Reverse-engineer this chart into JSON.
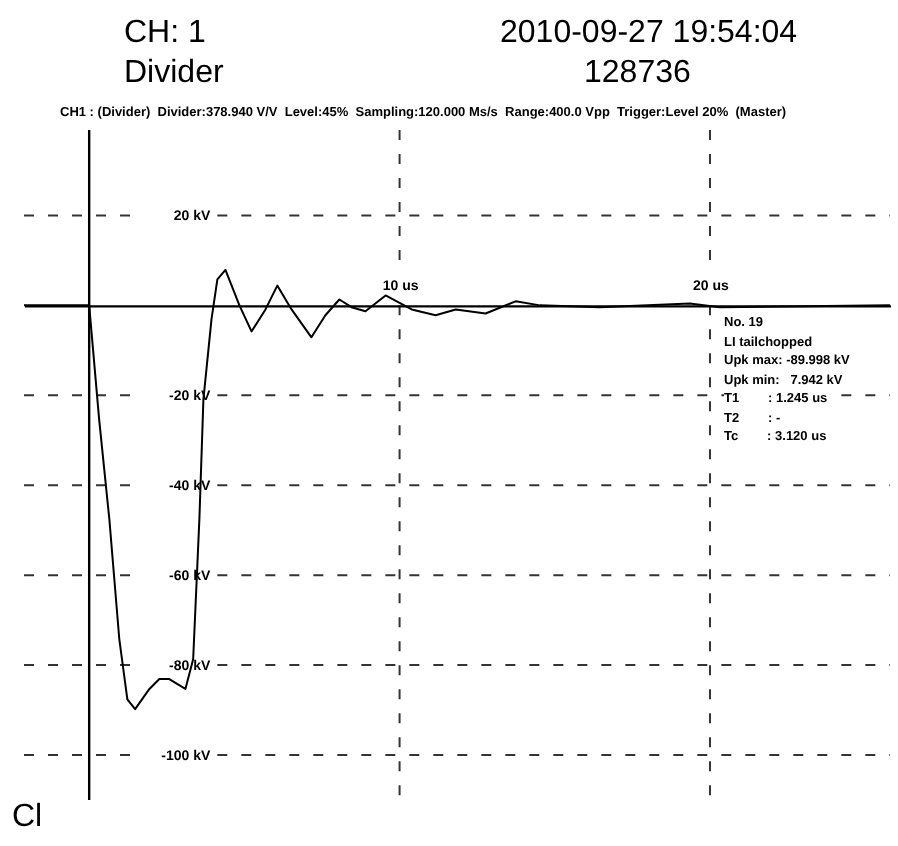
{
  "chart_data": {
    "type": "line",
    "title": "CH: 1",
    "subtitle": "Divider",
    "annotations": [
      "2010-09-27 19:54:04",
      "128736",
      "CH1 : (Divider)  Divider:378.940 V/V  Level:45%  Sampling:120.000 Ms/s  Range:400.0 Vpp  Trigger:Level 20%  (Master)",
      "No. 19",
      "LI tailchopped",
      "Upk max: -89.998 kV",
      "Upk min:   7.942 kV",
      "T1        : 1.245 us",
      "T2        : -",
      "Tc        : 3.120 us",
      "Cl"
    ],
    "x": [
      -2.1,
      0,
      0.32,
      0.65,
      0.97,
      1.23,
      1.48,
      1.94,
      2.26,
      2.58,
      3.1,
      3.35,
      3.55,
      3.68,
      3.94,
      4.13,
      4.39,
      4.84,
      5.23,
      5.68,
      6.06,
      6.52,
      7.16,
      7.61,
      8.06,
      8.45,
      8.9,
      9.55,
      10.39,
      11.16,
      11.81,
      12.77,
      13.74,
      14.52,
      16.45,
      19.35,
      20.32,
      25.8
    ],
    "series": [
      {
        "color": "#000000",
        "values": [
          0,
          0,
          -25.3,
          -47.6,
          -74.2,
          -87.6,
          -89.8,
          -85.3,
          -83.1,
          -83.1,
          -85.3,
          -78.7,
          -47.6,
          -20.9,
          -3.1,
          5.8,
          7.9,
          0,
          -5.8,
          -0.9,
          4.4,
          -0.9,
          -7.1,
          -2.2,
          1.3,
          -0.4,
          -1.3,
          2.2,
          -0.9,
          -2.2,
          -0.9,
          -1.8,
          0.9,
          0,
          -0.4,
          0.4,
          -0.4,
          0
        ]
      }
    ],
    "xlim": [
      -2.1,
      25.8
    ],
    "ylim": [
      -110,
      39
    ],
    "xticks": [
      {
        "value": 10,
        "label": "10 us"
      },
      {
        "value": 20,
        "label": "20 us"
      }
    ],
    "yticks": [
      {
        "value": 20,
        "label": "20 kV"
      },
      {
        "value": -20,
        "label": "-20 kV"
      },
      {
        "value": -40,
        "label": "-40 kV"
      },
      {
        "value": -60,
        "label": "-60 kV"
      },
      {
        "value": -80,
        "label": "-80 kV"
      },
      {
        "value": -100,
        "label": "-100 kV"
      }
    ],
    "ref_lines": [
      {
        "axis": "x",
        "value": 0
      }
    ],
    "grid": true,
    "marker": "none",
    "line_style": "solid"
  }
}
